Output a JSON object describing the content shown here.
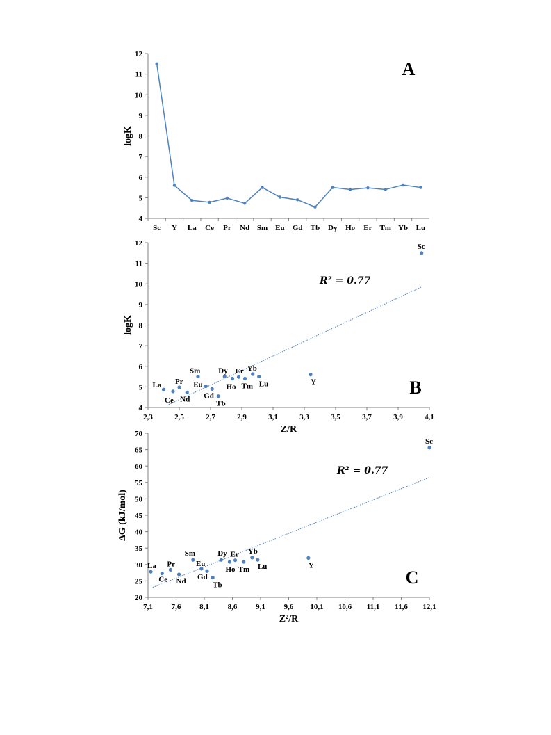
{
  "colors": {
    "series": "#4f81bd",
    "axis": "#808080",
    "text": "#000000"
  },
  "chart_data": [
    {
      "panel": "A",
      "type": "line",
      "ylabel": "logK",
      "xlabel": "",
      "ylim": [
        4,
        12
      ],
      "yticks": [
        "4",
        "5",
        "6",
        "7",
        "8",
        "9",
        "10",
        "11",
        "12"
      ],
      "categories": [
        "Sc",
        "Y",
        "La",
        "Ce",
        "Pr",
        "Nd",
        "Sm",
        "Eu",
        "Gd",
        "Tb",
        "Dy",
        "Ho",
        "Er",
        "Tm",
        "Yb",
        "Lu"
      ],
      "values": [
        11.5,
        5.6,
        4.87,
        4.78,
        4.98,
        4.73,
        5.5,
        5.03,
        4.9,
        4.55,
        5.5,
        5.4,
        5.48,
        5.4,
        5.62,
        5.5
      ],
      "grid": false
    },
    {
      "panel": "B",
      "type": "scatter",
      "ylabel": "logK",
      "xlabel": "Z/R",
      "xlim": [
        2.3,
        4.1
      ],
      "ylim": [
        4,
        12
      ],
      "xticks": [
        "2,3",
        "2,5",
        "2,7",
        "2,9",
        "3,1",
        "3,3",
        "3,5",
        "3,7",
        "3,9",
        "4,1"
      ],
      "yticks": [
        "4",
        "5",
        "6",
        "7",
        "8",
        "9",
        "10",
        "11",
        "12"
      ],
      "annotation": "R² = 0.77",
      "trendline": {
        "x": [
          2.42,
          4.05
        ],
        "y": [
          4.1,
          9.85
        ]
      },
      "points": [
        {
          "label": "Sc",
          "x": 4.05,
          "y": 11.5
        },
        {
          "label": "Y",
          "x": 3.34,
          "y": 5.6
        },
        {
          "label": "La",
          "x": 2.4,
          "y": 4.87
        },
        {
          "label": "Ce",
          "x": 2.46,
          "y": 4.78
        },
        {
          "label": "Pr",
          "x": 2.5,
          "y": 4.98
        },
        {
          "label": "Nd",
          "x": 2.55,
          "y": 4.73
        },
        {
          "label": "Sm",
          "x": 2.62,
          "y": 5.5
        },
        {
          "label": "Eu",
          "x": 2.67,
          "y": 5.03
        },
        {
          "label": "Gd",
          "x": 2.71,
          "y": 4.9
        },
        {
          "label": "Tb",
          "x": 2.75,
          "y": 4.55
        },
        {
          "label": "Dy",
          "x": 2.79,
          "y": 5.5
        },
        {
          "label": "Ho",
          "x": 2.84,
          "y": 5.4
        },
        {
          "label": "Er",
          "x": 2.88,
          "y": 5.48
        },
        {
          "label": "Tm",
          "x": 2.92,
          "y": 5.4
        },
        {
          "label": "Yb",
          "x": 2.97,
          "y": 5.62
        },
        {
          "label": "Lu",
          "x": 3.01,
          "y": 5.5
        }
      ],
      "grid": false
    },
    {
      "panel": "C",
      "type": "scatter",
      "ylabel": "ΔG (kJ/mol)",
      "xlabel": "Z²/R",
      "xlim": [
        7.1,
        12.1
      ],
      "ylim": [
        20,
        70
      ],
      "xticks": [
        "7,1",
        "7,6",
        "8,1",
        "8,6",
        "9,1",
        "9,6",
        "10,1",
        "10,6",
        "11,1",
        "11,6",
        "12,1"
      ],
      "yticks": [
        "20",
        "25",
        "30",
        "35",
        "40",
        "45",
        "50",
        "55",
        "60",
        "65",
        "70"
      ],
      "annotation": "R² = 0.77",
      "trendline": {
        "x": [
          7.15,
          12.1
        ],
        "y": [
          22.8,
          56.5
        ]
      },
      "points": [
        {
          "label": "Sc",
          "x": 12.1,
          "y": 65.6
        },
        {
          "label": "Y",
          "x": 9.95,
          "y": 32.0
        },
        {
          "label": "La",
          "x": 7.15,
          "y": 27.8
        },
        {
          "label": "Ce",
          "x": 7.35,
          "y": 27.3
        },
        {
          "label": "Pr",
          "x": 7.5,
          "y": 28.4
        },
        {
          "label": "Nd",
          "x": 7.65,
          "y": 27.0
        },
        {
          "label": "Sm",
          "x": 7.9,
          "y": 31.4
        },
        {
          "label": "Eu",
          "x": 8.05,
          "y": 28.7
        },
        {
          "label": "Gd",
          "x": 8.15,
          "y": 28.0
        },
        {
          "label": "Tb",
          "x": 8.25,
          "y": 26.0
        },
        {
          "label": "Dy",
          "x": 8.4,
          "y": 31.4
        },
        {
          "label": "Ho",
          "x": 8.55,
          "y": 30.8
        },
        {
          "label": "Er",
          "x": 8.65,
          "y": 31.3
        },
        {
          "label": "Tm",
          "x": 8.8,
          "y": 30.8
        },
        {
          "label": "Yb",
          "x": 8.95,
          "y": 32.1
        },
        {
          "label": "Lu",
          "x": 9.05,
          "y": 31.4
        }
      ],
      "grid": false
    }
  ]
}
